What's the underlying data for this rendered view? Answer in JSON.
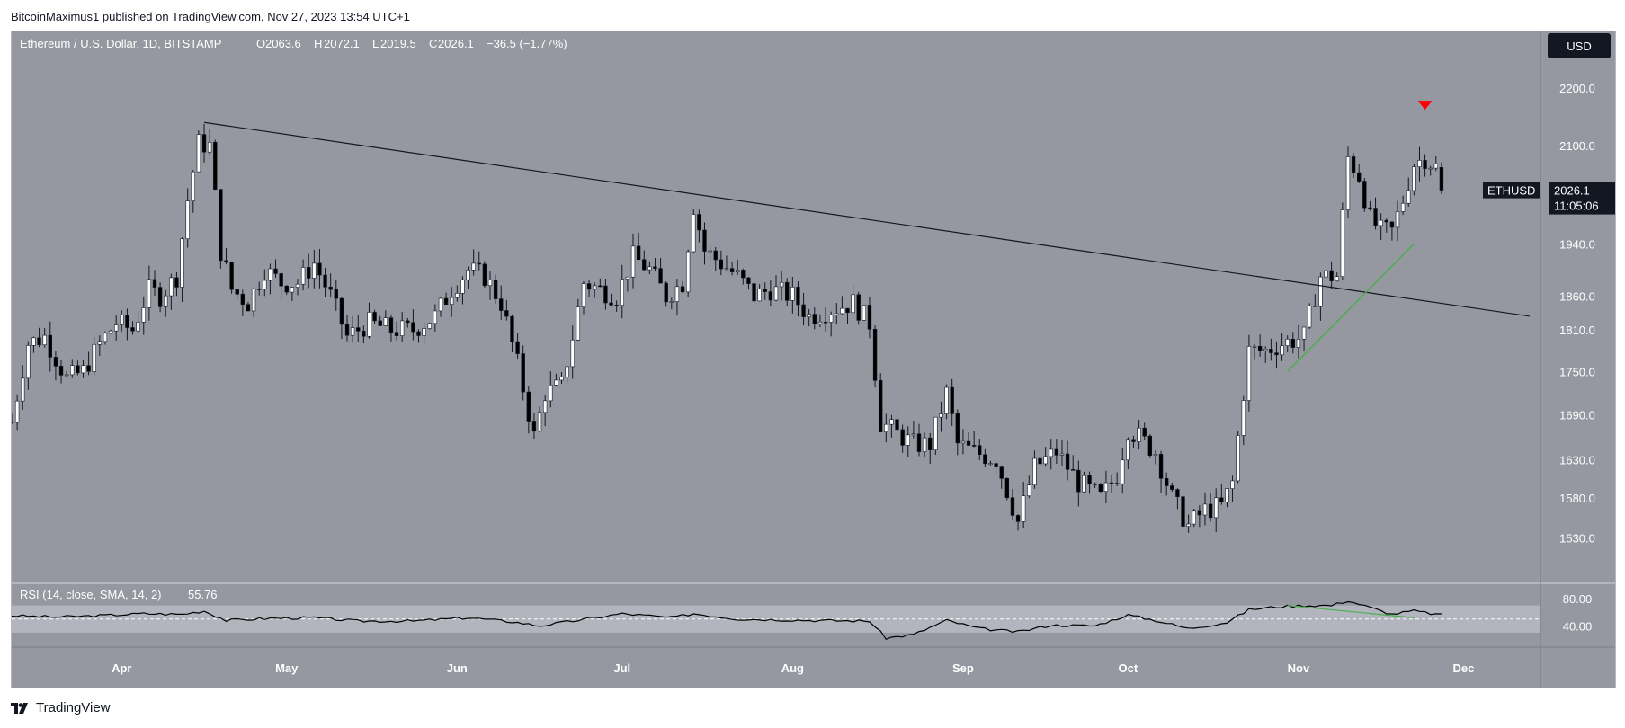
{
  "header": {
    "publisher_line": "BitcoinMaximus1 published on TradingView.com, Nov 27, 2023 13:54 UTC+1"
  },
  "footer": {
    "brand": "TradingView"
  },
  "legend": {
    "symbol_desc": "Ethereum / U.S. Dollar, 1D, BITSTAMP",
    "o_label": "O",
    "o_value": "2063.6",
    "h_label": "H",
    "h_value": "2072.1",
    "l_label": "L",
    "l_value": "2019.5",
    "c_label": "C",
    "c_value": "2026.1",
    "change": "−36.5 (−1.77%)"
  },
  "currency_button": "USD",
  "last_price_tag": {
    "symbol": "ETHUSD",
    "price": "2026.1",
    "countdown": "11:05:06"
  },
  "rsi_legend": {
    "label": "RSI (14, close, SMA, 14, 2)",
    "value": "55.76"
  },
  "colors": {
    "pane_bg": "#9598a1",
    "candle_up": "#ffffff",
    "candle_down": "#000000",
    "wick": "#131722",
    "trendline": "#131722",
    "support_line": "#4caf50",
    "rsi_divergence": "#4caf50",
    "rsi_line": "#000000",
    "rsi_band": "#b2b5be",
    "marker": "#ff0000"
  },
  "icons": {
    "marker": "red-down-triangle-icon",
    "brand": "tradingview-logo-icon"
  },
  "chart_data": [
    {
      "type": "candlestick",
      "title": "Ethereum / U.S. Dollar, 1D, BITSTAMP",
      "y_axis_ticks": [
        2200.0,
        2100.0,
        1940.0,
        1860.0,
        1810.0,
        1750.0,
        1690.0,
        1630.0,
        1580.0,
        1530.0
      ],
      "y_axis_scale": "log",
      "x_axis_ticks": [
        "Apr",
        "May",
        "Jun",
        "Jul",
        "Aug",
        "Sep",
        "Oct",
        "Nov",
        "Dec"
      ],
      "x_range": [
        "2023-03-12",
        "2023-12-15"
      ],
      "y_range": [
        1490,
        2270
      ],
      "grid": false,
      "last_price": 2026.1,
      "closes_by_date": [
        [
          "2023-03-12",
          1680
        ],
        [
          "2023-03-15",
          1790
        ],
        [
          "2023-03-18",
          1800
        ],
        [
          "2023-03-22",
          1740
        ],
        [
          "2023-03-25",
          1750
        ],
        [
          "2023-03-28",
          1790
        ],
        [
          "2023-03-31",
          1820
        ],
        [
          "2023-04-03",
          1810
        ],
        [
          "2023-04-06",
          1870
        ],
        [
          "2023-04-08",
          1860
        ],
        [
          "2023-04-11",
          1890
        ],
        [
          "2023-04-13",
          2010
        ],
        [
          "2023-04-15",
          2105
        ],
        [
          "2023-04-17",
          2100
        ],
        [
          "2023-04-19",
          1930
        ],
        [
          "2023-04-21",
          1870
        ],
        [
          "2023-04-24",
          1850
        ],
        [
          "2023-04-27",
          1900
        ],
        [
          "2023-04-30",
          1880
        ],
        [
          "2023-05-03",
          1880
        ],
        [
          "2023-05-06",
          1910
        ],
        [
          "2023-05-09",
          1860
        ],
        [
          "2023-05-12",
          1800
        ],
        [
          "2023-05-16",
          1820
        ],
        [
          "2023-05-20",
          1810
        ],
        [
          "2023-05-24",
          1810
        ],
        [
          "2023-05-28",
          1830
        ],
        [
          "2023-05-31",
          1870
        ],
        [
          "2023-06-03",
          1900
        ],
        [
          "2023-06-06",
          1890
        ],
        [
          "2023-06-09",
          1850
        ],
        [
          "2023-06-12",
          1760
        ],
        [
          "2023-06-15",
          1660
        ],
        [
          "2023-06-17",
          1720
        ],
        [
          "2023-06-20",
          1730
        ],
        [
          "2023-06-22",
          1800
        ],
        [
          "2023-06-24",
          1880
        ],
        [
          "2023-06-27",
          1870
        ],
        [
          "2023-06-30",
          1860
        ],
        [
          "2023-07-03",
          1920
        ],
        [
          "2023-07-06",
          1900
        ],
        [
          "2023-07-09",
          1860
        ],
        [
          "2023-07-12",
          1880
        ],
        [
          "2023-07-14",
          2000
        ],
        [
          "2023-07-16",
          1930
        ],
        [
          "2023-07-19",
          1910
        ],
        [
          "2023-07-22",
          1890
        ],
        [
          "2023-07-25",
          1860
        ],
        [
          "2023-07-28",
          1870
        ],
        [
          "2023-08-01",
          1860
        ],
        [
          "2023-08-04",
          1830
        ],
        [
          "2023-08-08",
          1840
        ],
        [
          "2023-08-12",
          1850
        ],
        [
          "2023-08-15",
          1820
        ],
        [
          "2023-08-17",
          1680
        ],
        [
          "2023-08-19",
          1670
        ],
        [
          "2023-08-23",
          1650
        ],
        [
          "2023-08-26",
          1650
        ],
        [
          "2023-08-29",
          1720
        ],
        [
          "2023-08-31",
          1650
        ],
        [
          "2023-09-03",
          1640
        ],
        [
          "2023-09-07",
          1630
        ],
        [
          "2023-09-11",
          1550
        ],
        [
          "2023-09-14",
          1620
        ],
        [
          "2023-09-18",
          1640
        ],
        [
          "2023-09-22",
          1600
        ],
        [
          "2023-09-26",
          1580
        ],
        [
          "2023-09-29",
          1610
        ],
        [
          "2023-10-01",
          1670
        ],
        [
          "2023-10-03",
          1660
        ],
        [
          "2023-10-06",
          1640
        ],
        [
          "2023-10-09",
          1580
        ],
        [
          "2023-10-12",
          1545
        ],
        [
          "2023-10-15",
          1565
        ],
        [
          "2023-10-18",
          1570
        ],
        [
          "2023-10-20",
          1600
        ],
        [
          "2023-10-23",
          1780
        ],
        [
          "2023-10-26",
          1780
        ],
        [
          "2023-10-29",
          1790
        ],
        [
          "2023-11-02",
          1800
        ],
        [
          "2023-11-05",
          1890
        ],
        [
          "2023-11-08",
          1890
        ],
        [
          "2023-11-10",
          2080
        ],
        [
          "2023-11-12",
          2050
        ],
        [
          "2023-11-14",
          1980
        ],
        [
          "2023-11-16",
          1960
        ],
        [
          "2023-11-18",
          1960
        ],
        [
          "2023-11-20",
          2010
        ],
        [
          "2023-11-22",
          2070
        ],
        [
          "2023-11-24",
          2080
        ],
        [
          "2023-11-26",
          2063.6
        ],
        [
          "2023-11-27",
          2026.1
        ]
      ],
      "annotations": [
        {
          "type": "trendline",
          "from": [
            "2023-04-16",
            2140
          ],
          "to": [
            "2023-12-13",
            1830
          ]
        },
        {
          "type": "support_line",
          "from": [
            "2023-10-30",
            1750
          ],
          "to": [
            "2023-11-22",
            1940
          ]
        },
        {
          "type": "marker",
          "shape": "down-triangle",
          "at": [
            "2023-11-24",
            2170
          ]
        }
      ]
    },
    {
      "type": "line",
      "title": "RSI (14, close, SMA, 14, 2)",
      "y_axis_ticks": [
        80.0,
        40.0
      ],
      "y_range": [
        10,
        100
      ],
      "band": [
        30,
        70
      ],
      "midline": 50,
      "last_value": 55.76,
      "values_by_date": [
        [
          "2023-03-12",
          55
        ],
        [
          "2023-03-20",
          53
        ],
        [
          "2023-03-28",
          55
        ],
        [
          "2023-04-05",
          58
        ],
        [
          "2023-04-12",
          57
        ],
        [
          "2023-04-16",
          62
        ],
        [
          "2023-04-20",
          48
        ],
        [
          "2023-04-28",
          51
        ],
        [
          "2023-05-06",
          52
        ],
        [
          "2023-05-14",
          47
        ],
        [
          "2023-05-24",
          47
        ],
        [
          "2023-06-03",
          52
        ],
        [
          "2023-06-11",
          46
        ],
        [
          "2023-06-16",
          40
        ],
        [
          "2023-06-22",
          47
        ],
        [
          "2023-07-01",
          58
        ],
        [
          "2023-07-10",
          52
        ],
        [
          "2023-07-14",
          58
        ],
        [
          "2023-07-22",
          50
        ],
        [
          "2023-08-05",
          48
        ],
        [
          "2023-08-15",
          47
        ],
        [
          "2023-08-18",
          22
        ],
        [
          "2023-08-23",
          27
        ],
        [
          "2023-08-29",
          48
        ],
        [
          "2023-09-04",
          36
        ],
        [
          "2023-09-11",
          31
        ],
        [
          "2023-09-17",
          41
        ],
        [
          "2023-09-25",
          40
        ],
        [
          "2023-10-01",
          56
        ],
        [
          "2023-10-06",
          48
        ],
        [
          "2023-10-12",
          36
        ],
        [
          "2023-10-19",
          45
        ],
        [
          "2023-10-23",
          64
        ],
        [
          "2023-10-28",
          68
        ],
        [
          "2023-11-02",
          70
        ],
        [
          "2023-11-07",
          70
        ],
        [
          "2023-11-10",
          77
        ],
        [
          "2023-11-14",
          67
        ],
        [
          "2023-11-18",
          57
        ],
        [
          "2023-11-22",
          62
        ],
        [
          "2023-11-27",
          55.76
        ]
      ],
      "annotations": [
        {
          "type": "divergence_line",
          "from": [
            "2023-10-30",
            70
          ],
          "to": [
            "2023-11-22",
            52
          ]
        }
      ]
    }
  ]
}
